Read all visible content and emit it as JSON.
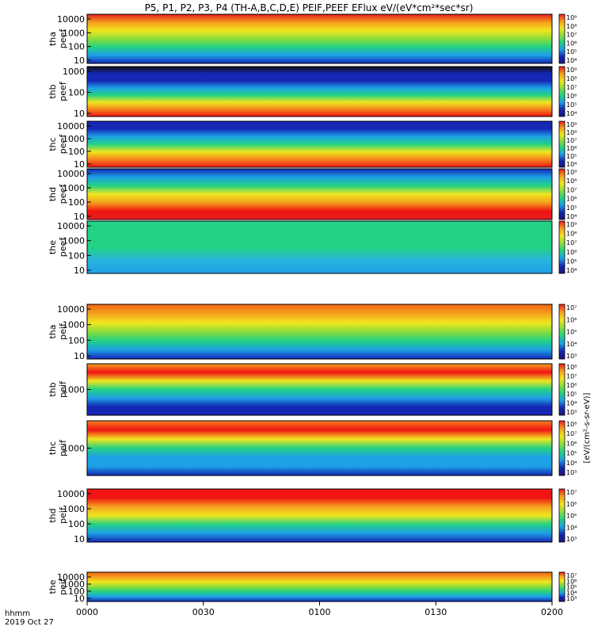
{
  "title": "P5, P1, P2, P3, P4 (TH-A,B,C,D,E) PEIF,PEEF EFlux eV/(eV*cm²*sec*sr)",
  "time_axis": {
    "label_line1": "hhmm",
    "label_line2": "2019 Oct 27",
    "ticks": [
      "0000",
      "0030",
      "0100",
      "0130",
      "0200"
    ]
  },
  "colorbar_unit_label": "[eV/(cm²-s-sr-eV)]",
  "chart_data": [
    {
      "type": "heatmap",
      "probe": "tha",
      "species": "peef",
      "ylabel_probe": "tha",
      "ylabel_species": "peef",
      "yscale": "log",
      "yticks": [
        "10",
        "100",
        "1000",
        "10000"
      ],
      "cbar_ticks": [
        "10⁴",
        "10⁵",
        "10⁶",
        "10⁷",
        "10⁸",
        "10⁹"
      ],
      "color_ramp": [
        "#1428b4",
        "#1ea0e6",
        "#23d282",
        "#8cdc3c",
        "#f0e61e",
        "#f5a01e",
        "#e61e1e"
      ]
    },
    {
      "type": "heatmap",
      "probe": "thb",
      "species": "peef",
      "ylabel_probe": "thb",
      "ylabel_species": "peef",
      "yscale": "log",
      "yticks": [
        "10",
        "100",
        "1000"
      ],
      "cbar_ticks": [
        "10⁴",
        "10⁵",
        "10⁶",
        "10⁷",
        "10⁸",
        "10⁹"
      ],
      "color_ramp": [
        "#f01414",
        "#f5821e",
        "#f0e61e",
        "#23d282",
        "#1ea0e6",
        "#1428b4",
        "#1428b4",
        "#101010"
      ]
    },
    {
      "type": "heatmap",
      "probe": "thc",
      "species": "peef",
      "ylabel_probe": "thc",
      "ylabel_species": "peef",
      "yscale": "log",
      "yticks": [
        "10",
        "100",
        "1000",
        "10000"
      ],
      "cbar_ticks": [
        "10⁴",
        "10⁵",
        "10⁶",
        "10⁷",
        "10⁸",
        "10⁹"
      ],
      "color_ramp": [
        "#f01414",
        "#f5821e",
        "#f0e61e",
        "#23d282",
        "#1ea0e6",
        "#1428b4",
        "#1428b4"
      ]
    },
    {
      "type": "heatmap",
      "probe": "thd",
      "species": "peef",
      "ylabel_probe": "thd",
      "ylabel_species": "peef",
      "yscale": "log",
      "yticks": [
        "10",
        "100",
        "1000",
        "10000"
      ],
      "cbar_ticks": [
        "10⁴",
        "10⁵",
        "10⁶",
        "10⁷",
        "10⁸",
        "10⁹"
      ],
      "color_ramp": [
        "#e61e1e",
        "#f01414",
        "#f5a01e",
        "#f0e61e",
        "#23d282",
        "#1ea0e6",
        "#1428b4"
      ]
    },
    {
      "type": "heatmap",
      "probe": "the",
      "species": "peef",
      "ylabel_probe": "the",
      "ylabel_species": "peef",
      "yscale": "log",
      "yticks": [
        "10",
        "100",
        "1000",
        "10000"
      ],
      "cbar_ticks": [
        "10⁴",
        "10⁵",
        "10⁶",
        "10⁷",
        "10⁸",
        "10⁹"
      ],
      "color_ramp": [
        "#1ea0e6",
        "#28b4dc",
        "#23d282",
        "#23d282",
        "#23d282"
      ]
    },
    {
      "type": "heatmap",
      "probe": "tha",
      "species": "peif",
      "ylabel_probe": "tha",
      "ylabel_species": "peif",
      "yscale": "log",
      "yticks": [
        "10",
        "100",
        "1000",
        "10000"
      ],
      "cbar_ticks": [
        "10³",
        "10⁴",
        "10⁵",
        "10⁶",
        "10⁷"
      ],
      "color_ramp": [
        "#1428b4",
        "#1ea0e6",
        "#23d282",
        "#8cdc3c",
        "#f0e61e",
        "#f5a01e",
        "#f06414"
      ]
    },
    {
      "type": "heatmap",
      "probe": "thb",
      "species": "peif",
      "ylabel_probe": "thb",
      "ylabel_species": "peif",
      "yscale": "log",
      "yticks": [
        "1000"
      ],
      "cbar_ticks": [
        "10³",
        "10⁴",
        "10⁵",
        "10⁶",
        "10⁷",
        "10⁸"
      ],
      "color_ramp": [
        "#1428b4",
        "#1428b4",
        "#1ea0e6",
        "#23d282",
        "#f0e61e",
        "#f01414",
        "#f5a01e"
      ]
    },
    {
      "type": "heatmap",
      "probe": "thc",
      "species": "peif",
      "ylabel_probe": "thc",
      "ylabel_species": "peif",
      "yscale": "log",
      "yticks": [
        "1000"
      ],
      "cbar_ticks": [
        "10³",
        "10⁴",
        "10⁵",
        "10⁶",
        "10⁷",
        "10⁸"
      ],
      "color_ramp": [
        "#1428b4",
        "#1ea0e6",
        "#1ea0e6",
        "#23d282",
        "#f0e61e",
        "#f01414",
        "#f5821e"
      ]
    },
    {
      "type": "heatmap",
      "probe": "thd",
      "species": "peif",
      "ylabel_probe": "thd",
      "ylabel_species": "peif",
      "yscale": "log",
      "yticks": [
        "10",
        "100",
        "1000",
        "10000"
      ],
      "cbar_ticks": [
        "10³",
        "10⁴",
        "10⁵",
        "10⁶",
        "10⁷"
      ],
      "color_ramp": [
        "#1428b4",
        "#1ea0e6",
        "#23d282",
        "#f0e61e",
        "#f5a01e",
        "#f01414",
        "#f01414"
      ]
    },
    {
      "type": "heatmap",
      "probe": "the",
      "species": "peif",
      "ylabel_probe": "the",
      "ylabel_species": "peif",
      "yscale": "log",
      "yticks": [
        "10",
        "100",
        "1000",
        "10000"
      ],
      "cbar_ticks": [
        "10³",
        "10⁴",
        "10⁵",
        "10⁶",
        "10⁷"
      ],
      "color_ramp": [
        "#1428b4",
        "#1ea0e6",
        "#23d282",
        "#8cdc3c",
        "#f0e61e",
        "#f5a01e",
        "#f06414"
      ]
    }
  ]
}
